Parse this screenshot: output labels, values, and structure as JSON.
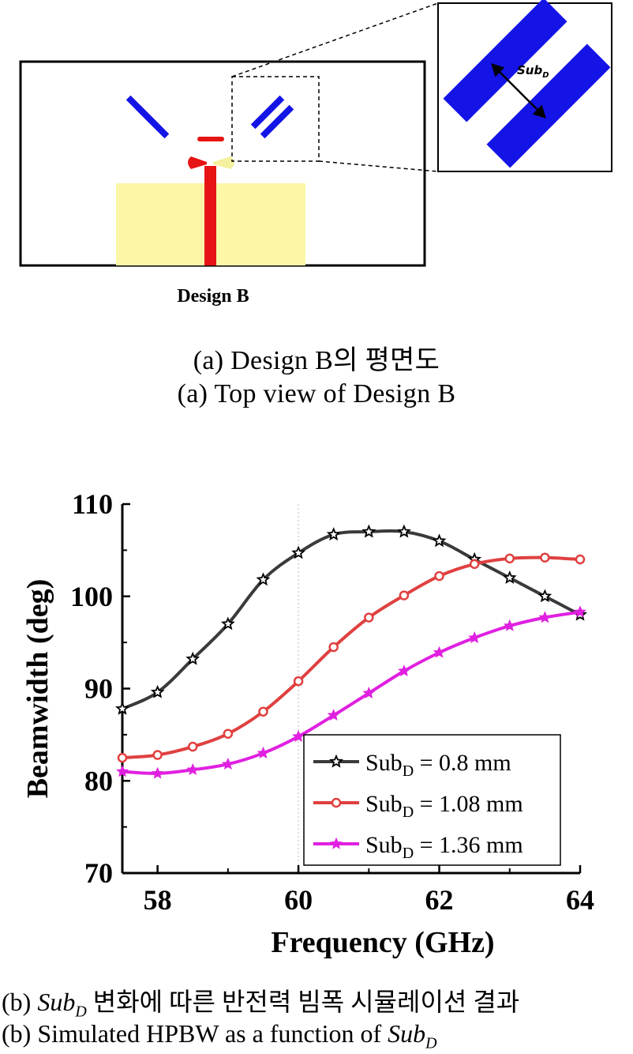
{
  "figure_a": {
    "design_label": "Design B",
    "inset_label": "Sub",
    "inset_label_sub": "D",
    "colors": {
      "director": "#1414e6",
      "dipole": "#e61414",
      "ground": "#fbf7a6",
      "feed_yellow": "#f5f0a0"
    },
    "caption_kr": "(a) Design B의 평면도",
    "caption_en": "(a) Top view of Design B"
  },
  "chart_data": {
    "type": "line",
    "xlabel": "Frequency (GHz)",
    "ylabel": "Beamwidth (deg)",
    "xlim": [
      57.5,
      64
    ],
    "ylim": [
      70,
      110
    ],
    "xticks": [
      "58",
      "60",
      "62",
      "64"
    ],
    "yticks": [
      "70",
      "80",
      "90",
      "100",
      "110"
    ],
    "grid": "vertical dotted at 60",
    "legend_position": "bottom-right",
    "series": [
      {
        "name": "Sub",
        "name_sub": "D",
        "name_suffix": " = 0.8 mm",
        "color": "#3a3a3a",
        "marker": "star-outline",
        "x": [
          57.5,
          58,
          58.5,
          59,
          59.5,
          60,
          60.5,
          61,
          61.5,
          62,
          62.5,
          63,
          63.5,
          64
        ],
        "y": [
          87.8,
          89.6,
          93.2,
          97,
          101.8,
          104.7,
          106.7,
          107,
          107,
          106,
          104,
          102,
          100,
          98
        ]
      },
      {
        "name": "Sub",
        "name_sub": "D",
        "name_suffix": " = 1.08 mm",
        "color": "#e04040",
        "marker": "circle-open",
        "x": [
          57.5,
          58,
          58.5,
          59,
          59.5,
          60,
          60.5,
          61,
          61.5,
          62,
          62.5,
          63,
          63.5,
          64
        ],
        "y": [
          82.5,
          82.8,
          83.7,
          85.1,
          87.5,
          90.8,
          94.5,
          97.7,
          100.1,
          102.2,
          103.5,
          104.1,
          104.2,
          104
        ]
      },
      {
        "name": "Sub",
        "name_sub": "D",
        "name_suffix": " = 1.36 mm",
        "color": "#e020e0",
        "marker": "star-filled",
        "x": [
          57.5,
          58,
          58.5,
          59,
          59.5,
          60,
          60.5,
          61,
          61.5,
          62,
          62.5,
          63,
          63.5,
          64
        ],
        "y": [
          81,
          80.8,
          81.2,
          81.8,
          83,
          84.8,
          87.1,
          89.5,
          91.9,
          93.9,
          95.5,
          96.8,
          97.7,
          98.3
        ]
      }
    ]
  },
  "figure_b": {
    "caption_kr_prefix": "(b) ",
    "caption_kr_var": "Sub",
    "caption_kr_var_sub": "D",
    "caption_kr_rest": " 변화에 따른 반전력 빔폭 시뮬레이션 결과",
    "caption_en_prefix": "(b) Simulated HPBW as a function of ",
    "caption_en_var": "Sub",
    "caption_en_var_sub": "D"
  }
}
